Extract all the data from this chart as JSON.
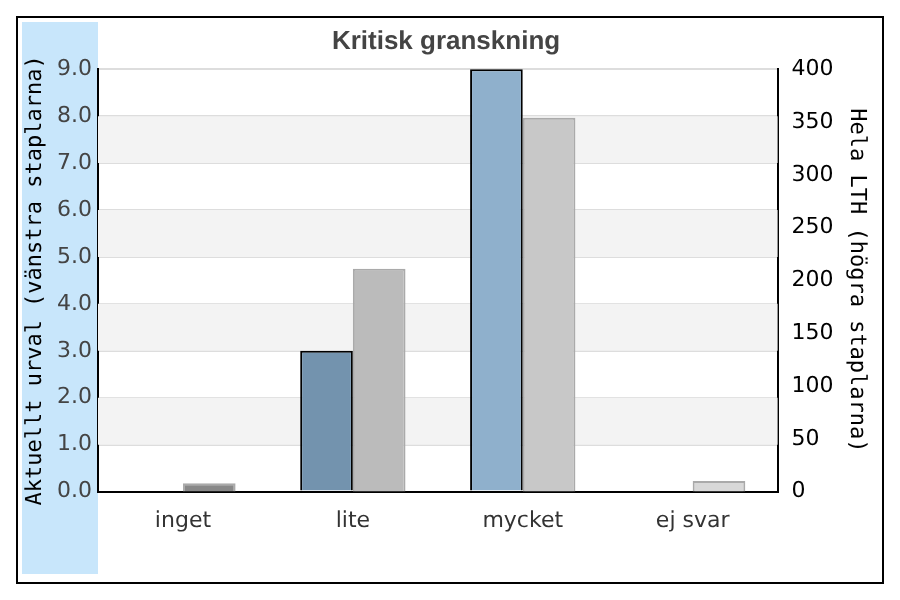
{
  "chart_data": {
    "type": "bar",
    "title": "Kritisk granskning",
    "categories": [
      "inget",
      "lite",
      "mycket",
      "ej svar"
    ],
    "ylabel": "Aktuellt urval (vänstra staplarna)",
    "y2label": "Hela LTH (högra staplarna)",
    "series": [
      {
        "axis": "y",
        "colors": [
          "#7393ae",
          "#7393ae",
          "#8fb0cc",
          "#8fb0cc"
        ],
        "values": [
          0,
          3,
          9,
          0
        ]
      },
      {
        "axis": "y2",
        "colors": [
          "#888888",
          "#bbbbbb",
          "#c8c8c8",
          "#d8d8d8"
        ],
        "values": [
          8,
          211,
          354,
          10
        ]
      }
    ],
    "ylim": [
      0,
      9
    ],
    "yticks": [
      {
        "value": 0,
        "label": "0.0"
      },
      {
        "value": 1,
        "label": "1.0"
      },
      {
        "value": 2,
        "label": "2.0"
      },
      {
        "value": 3,
        "label": "3.0"
      },
      {
        "value": 4,
        "label": "4.0"
      },
      {
        "value": 5,
        "label": "5.0"
      },
      {
        "value": 6,
        "label": "6.0"
      },
      {
        "value": 7,
        "label": "7.0"
      },
      {
        "value": 8,
        "label": "8.0"
      },
      {
        "value": 9,
        "label": "9.0"
      }
    ],
    "y2lim": [
      0,
      400
    ],
    "y2ticks": [
      0,
      50,
      100,
      150,
      200,
      250,
      300,
      350,
      400
    ],
    "grid": "y",
    "legend": false
  }
}
